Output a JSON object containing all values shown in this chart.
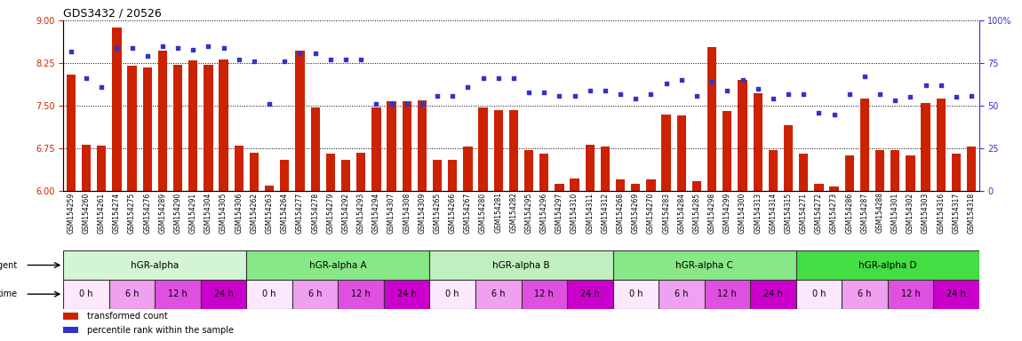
{
  "title": "GDS3432 / 20526",
  "samples": [
    "GSM154259",
    "GSM154260",
    "GSM154261",
    "GSM154274",
    "GSM154275",
    "GSM154276",
    "GSM154289",
    "GSM154290",
    "GSM154291",
    "GSM154304",
    "GSM154305",
    "GSM154306",
    "GSM154262",
    "GSM154263",
    "GSM154264",
    "GSM154277",
    "GSM154278",
    "GSM154279",
    "GSM154292",
    "GSM154293",
    "GSM154294",
    "GSM154307",
    "GSM154308",
    "GSM154309",
    "GSM154265",
    "GSM154266",
    "GSM154267",
    "GSM154280",
    "GSM154281",
    "GSM154282",
    "GSM154295",
    "GSM154296",
    "GSM154297",
    "GSM154310",
    "GSM154311",
    "GSM154312",
    "GSM154268",
    "GSM154269",
    "GSM154270",
    "GSM154283",
    "GSM154284",
    "GSM154285",
    "GSM154298",
    "GSM154299",
    "GSM154300",
    "GSM154313",
    "GSM154314",
    "GSM154315",
    "GSM154271",
    "GSM154272",
    "GSM154273",
    "GSM154286",
    "GSM154287",
    "GSM154288",
    "GSM154301",
    "GSM154302",
    "GSM154303",
    "GSM154316",
    "GSM154317",
    "GSM154318"
  ],
  "bar_values": [
    8.05,
    6.82,
    6.8,
    8.87,
    8.2,
    8.18,
    8.47,
    8.22,
    8.3,
    8.22,
    8.32,
    6.8,
    6.67,
    6.1,
    6.55,
    8.47,
    7.47,
    6.65,
    6.55,
    6.67,
    7.47,
    7.58,
    7.58,
    7.6,
    6.55,
    6.55,
    6.78,
    7.47,
    7.42,
    7.43,
    6.72,
    6.65,
    6.12,
    6.22,
    6.82,
    6.78,
    6.2,
    6.13,
    6.2,
    7.35,
    7.33,
    6.18,
    8.53,
    7.4,
    7.95,
    7.72,
    6.72,
    7.15,
    6.65,
    6.13,
    6.08,
    6.62,
    7.62,
    6.72,
    6.72,
    6.62,
    7.55,
    7.62,
    6.65,
    6.78
  ],
  "dot_values": [
    82,
    66,
    61,
    84,
    84,
    79,
    85,
    84,
    83,
    85,
    84,
    77,
    76,
    51,
    76,
    81,
    81,
    77,
    77,
    77,
    51,
    51,
    51,
    51,
    56,
    56,
    61,
    66,
    66,
    66,
    58,
    58,
    56,
    56,
    59,
    59,
    57,
    54,
    57,
    63,
    65,
    56,
    64,
    59,
    65,
    60,
    54,
    57,
    57,
    46,
    45,
    57,
    67,
    57,
    53,
    55,
    62,
    62,
    55,
    56
  ],
  "ylim_left": [
    6,
    9
  ],
  "yticks_left": [
    6,
    6.75,
    7.5,
    8.25,
    9
  ],
  "ylim_right": [
    0,
    100
  ],
  "yticks_right": [
    0,
    25,
    50,
    75,
    100
  ],
  "agents": [
    {
      "label": "hGR-alpha",
      "start": 0,
      "end": 12,
      "color": "#d4f5d4"
    },
    {
      "label": "hGR-alpha A",
      "start": 12,
      "end": 24,
      "color": "#88e888"
    },
    {
      "label": "hGR-alpha B",
      "start": 24,
      "end": 36,
      "color": "#c0f0c0"
    },
    {
      "label": "hGR-alpha C",
      "start": 36,
      "end": 48,
      "color": "#88e888"
    },
    {
      "label": "hGR-alpha D",
      "start": 48,
      "end": 60,
      "color": "#44dd44"
    }
  ],
  "time_labels": [
    "0 h",
    "6 h",
    "12 h",
    "24 h"
  ],
  "time_colors": [
    "#fce8fc",
    "#f0a0f0",
    "#e050e0",
    "#cc00cc"
  ],
  "bar_color": "#cc2200",
  "dot_color": "#3333cc",
  "bar_bottom": 6.0
}
